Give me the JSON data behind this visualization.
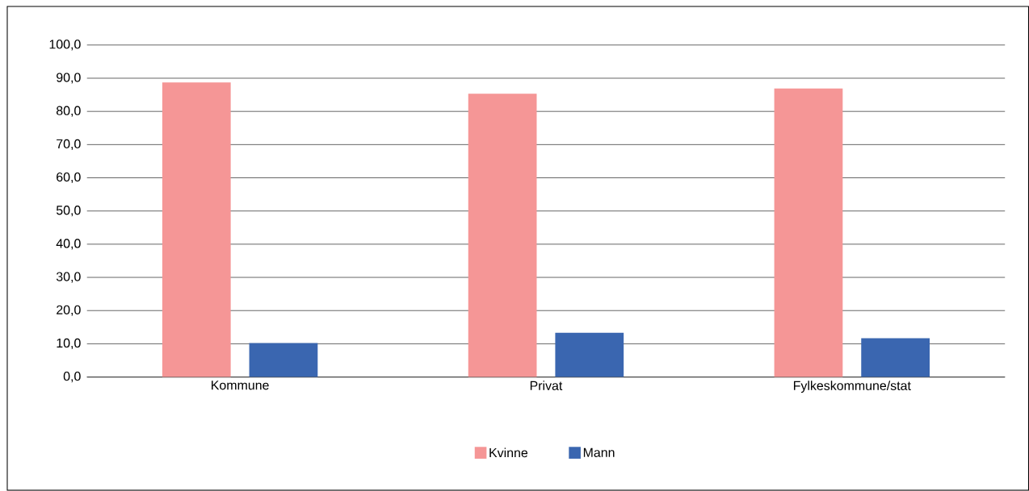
{
  "chart_data": {
    "type": "bar",
    "categories": [
      "Kommune",
      "Privat",
      "Fylkeskommune/stat"
    ],
    "series": [
      {
        "name": "Kvinne",
        "color": "#f59696",
        "values": [
          88.7,
          85.3,
          86.9
        ]
      },
      {
        "name": "Mann",
        "color": "#3a66b0",
        "values": [
          10.2,
          13.3,
          11.7
        ]
      }
    ],
    "ylim": [
      0,
      100
    ],
    "yticks": [
      {
        "value": 0,
        "label": "0,0"
      },
      {
        "value": 10,
        "label": "10,0"
      },
      {
        "value": 20,
        "label": "20,0"
      },
      {
        "value": 30,
        "label": "30,0"
      },
      {
        "value": 40,
        "label": "40,0"
      },
      {
        "value": 50,
        "label": "50,0"
      },
      {
        "value": 60,
        "label": "60,0"
      },
      {
        "value": 70,
        "label": "70,0"
      },
      {
        "value": 80,
        "label": "80,0"
      },
      {
        "value": 90,
        "label": "90,0"
      },
      {
        "value": 100,
        "label": "100,0"
      }
    ],
    "grid": "y",
    "legend": "bottom"
  }
}
